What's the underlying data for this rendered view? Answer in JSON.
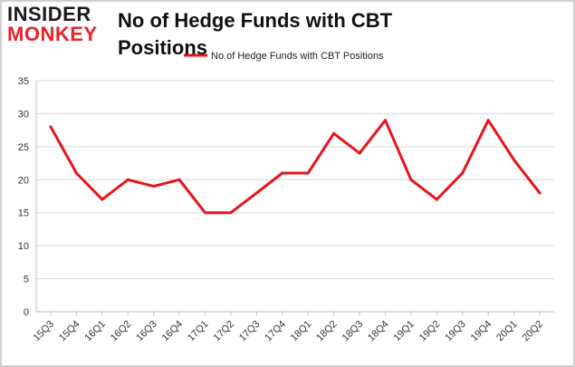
{
  "logo": {
    "top": "INSIDER",
    "bottom": "MONKEY"
  },
  "chart_data": {
    "type": "line",
    "title": "No of Hedge Funds with CBT Positions",
    "xlabel": "",
    "ylabel": "",
    "categories": [
      "15Q3",
      "15Q4",
      "16Q1",
      "16Q2",
      "16Q3",
      "16Q4",
      "17Q1",
      "17Q2",
      "17Q3",
      "17Q4",
      "18Q1",
      "18Q2",
      "18Q3",
      "18Q4",
      "19Q1",
      "19Q2",
      "19Q3",
      "19Q4",
      "20Q1",
      "20Q2"
    ],
    "series": [
      {
        "name": "No of Hedge Funds with CBT Positions",
        "color": "#e8141b",
        "values": [
          28,
          21,
          17,
          20,
          19,
          20,
          15,
          15,
          18,
          21,
          21,
          27,
          24,
          29,
          20,
          17,
          21,
          29,
          23,
          18
        ]
      }
    ],
    "ylim": [
      0,
      35
    ],
    "yticks": [
      0,
      5,
      10,
      15,
      20,
      25,
      30,
      35
    ],
    "grid": true,
    "legend": "top-center"
  }
}
